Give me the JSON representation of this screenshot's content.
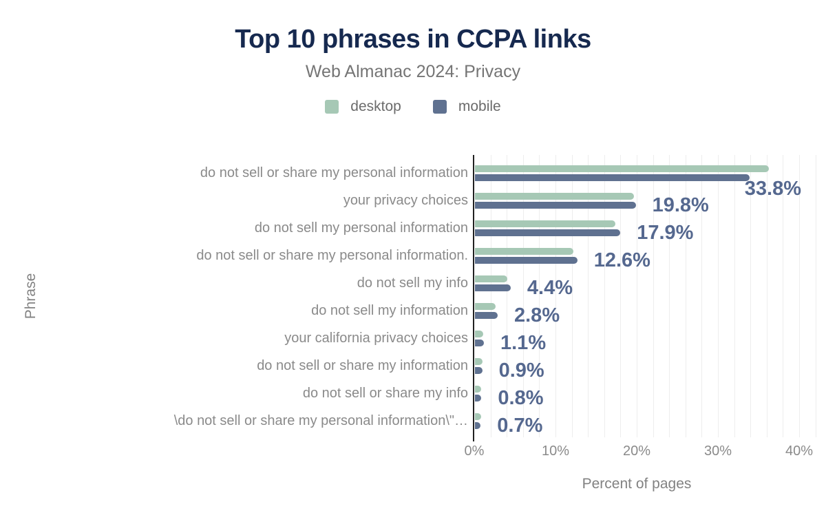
{
  "chart_data": {
    "type": "bar",
    "orientation": "horizontal",
    "title": "Top 10 phrases in CCPA links",
    "subtitle": "Web Almanac 2024: Privacy",
    "xlabel": "Percent of pages",
    "ylabel": "Phrase",
    "xlim": [
      0,
      42
    ],
    "x_tick_values": [
      0,
      10,
      20,
      30,
      40
    ],
    "x_tick_labels": [
      "0%",
      "10%",
      "20%",
      "30%",
      "40%"
    ],
    "grid": "vertical, minor line every 2%",
    "legend_position": "top-center",
    "legend": [
      {
        "name": "desktop",
        "color": "#a6c8b5"
      },
      {
        "name": "mobile",
        "color": "#5f7190"
      }
    ],
    "categories": [
      "do not sell or share my personal information",
      "your privacy choices",
      "do not sell my personal information",
      "do not sell or share my personal information.",
      "do not sell my info",
      "do not sell my information",
      "your california privacy choices",
      "do not sell or share my information",
      "do not sell or share my info",
      "\\do not sell or share my personal information\\\"…"
    ],
    "series": [
      {
        "name": "desktop",
        "color": "#a6c8b5",
        "values": [
          36.2,
          19.6,
          17.3,
          12.1,
          4.0,
          2.5,
          1.0,
          0.9,
          0.8,
          0.8
        ]
      },
      {
        "name": "mobile",
        "color": "#5f7190",
        "values": [
          33.8,
          19.8,
          17.9,
          12.6,
          4.4,
          2.8,
          1.1,
          0.9,
          0.8,
          0.7
        ]
      }
    ],
    "annotations": [
      "33.8%",
      "19.8%",
      "17.9%",
      "12.6%",
      "4.4%",
      "2.8%",
      "1.1%",
      "0.9%",
      "0.8%",
      "0.7%"
    ],
    "annotation_series": "mobile",
    "annotation_color": "#55688f",
    "title_color": "#16294f",
    "subtitle_color": "#757575",
    "axis_color": "#212121",
    "text_color": "#8a8a8a"
  }
}
